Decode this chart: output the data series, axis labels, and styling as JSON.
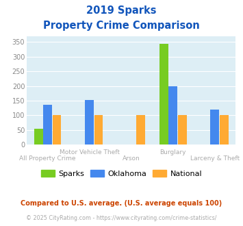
{
  "title_line1": "2019 Sparks",
  "title_line2": "Property Crime Comparison",
  "categories": [
    "All Property Crime",
    "Motor Vehicle Theft",
    "Arson",
    "Burglary",
    "Larceny & Theft"
  ],
  "series": {
    "Sparks": [
      55,
      0,
      0,
      343,
      0
    ],
    "Oklahoma": [
      135,
      153,
      0,
      200,
      120
    ],
    "National": [
      100,
      100,
      100,
      100,
      100
    ]
  },
  "colors": {
    "Sparks": "#77cc22",
    "Oklahoma": "#4488ee",
    "National": "#ffaa33"
  },
  "ylim": [
    0,
    370
  ],
  "yticks": [
    0,
    50,
    100,
    150,
    200,
    250,
    300,
    350
  ],
  "background_color": "#ddeef5",
  "title_color": "#1155bb",
  "label_color": "#aaaaaa",
  "footnote1": "Compared to U.S. average. (U.S. average equals 100)",
  "footnote2": "© 2025 CityRating.com - https://www.cityrating.com/crime-statistics/",
  "footnote1_color": "#cc4400",
  "footnote2_color": "#aaaaaa",
  "cat_row": [
    0,
    1,
    0,
    1,
    0
  ]
}
